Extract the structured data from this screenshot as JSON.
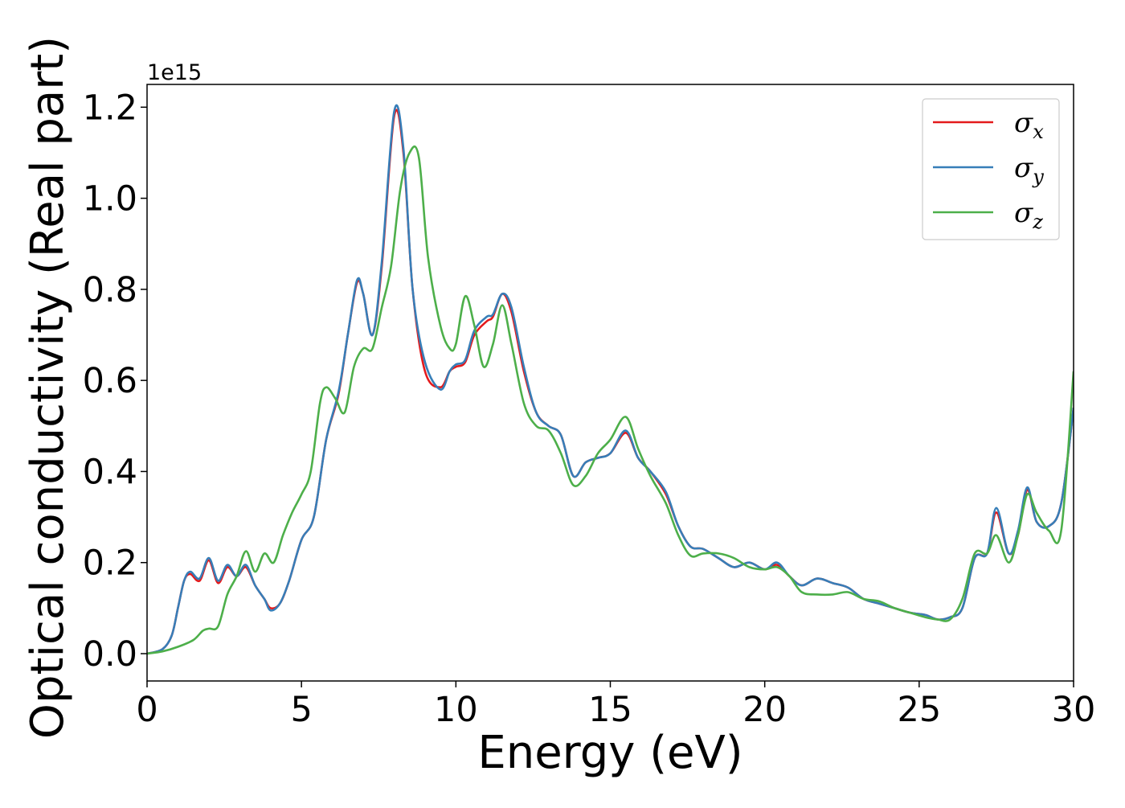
{
  "chart_data": {
    "type": "line",
    "xlabel": "Energy (eV)",
    "ylabel": "Optical conductivity (Real part)",
    "y_offset_text": "1e15",
    "y_multiplier": 1000000000000000.0,
    "xlim": [
      0,
      30
    ],
    "ylim": [
      -0.06,
      1.25
    ],
    "x_ticks": [
      0,
      5,
      10,
      15,
      20,
      25,
      30
    ],
    "x_tick_labels": [
      "0",
      "5",
      "10",
      "15",
      "20",
      "25",
      "30"
    ],
    "y_ticks": [
      0.0,
      0.2,
      0.4,
      0.6,
      0.8,
      1.0,
      1.2
    ],
    "y_tick_labels": [
      "0.0",
      "0.2",
      "0.4",
      "0.6",
      "0.8",
      "1.0",
      "1.2"
    ],
    "grid": false,
    "legend_position": "top-right",
    "series": [
      {
        "name": "σx",
        "legend_base": "σ",
        "legend_sub": "x",
        "color": "#e41a1c",
        "x": [
          0,
          0.5,
          0.8,
          1.0,
          1.2,
          1.4,
          1.7,
          2.0,
          2.3,
          2.6,
          2.9,
          3.2,
          3.5,
          3.8,
          4.0,
          4.3,
          4.6,
          5.0,
          5.4,
          5.8,
          6.2,
          6.5,
          6.8,
          7.0,
          7.3,
          7.6,
          8.0,
          8.3,
          8.6,
          9.0,
          9.5,
          9.8,
          10.0,
          10.3,
          10.6,
          11.0,
          11.2,
          11.5,
          11.8,
          12.2,
          12.6,
          13.0,
          13.4,
          13.8,
          14.2,
          14.6,
          15.0,
          15.5,
          15.9,
          16.3,
          16.8,
          17.2,
          17.6,
          18.0,
          18.5,
          19.0,
          19.5,
          20.0,
          20.4,
          20.8,
          21.2,
          21.7,
          22.2,
          22.7,
          23.2,
          23.7,
          24.2,
          24.7,
          25.2,
          25.6,
          26.0,
          26.4,
          26.8,
          27.2,
          27.5,
          27.9,
          28.2,
          28.5,
          28.8,
          29.2,
          29.6,
          30.0
        ],
        "y": [
          0,
          0.01,
          0.04,
          0.1,
          0.16,
          0.175,
          0.16,
          0.205,
          0.155,
          0.19,
          0.17,
          0.19,
          0.15,
          0.12,
          0.1,
          0.11,
          0.16,
          0.25,
          0.3,
          0.47,
          0.57,
          0.7,
          0.815,
          0.79,
          0.7,
          0.85,
          1.18,
          1.1,
          0.8,
          0.62,
          0.585,
          0.62,
          0.63,
          0.64,
          0.7,
          0.73,
          0.74,
          0.79,
          0.75,
          0.62,
          0.53,
          0.5,
          0.48,
          0.39,
          0.42,
          0.43,
          0.44,
          0.485,
          0.43,
          0.4,
          0.35,
          0.28,
          0.235,
          0.23,
          0.21,
          0.19,
          0.2,
          0.185,
          0.195,
          0.17,
          0.15,
          0.165,
          0.155,
          0.145,
          0.12,
          0.11,
          0.1,
          0.09,
          0.085,
          0.075,
          0.08,
          0.1,
          0.21,
          0.22,
          0.31,
          0.22,
          0.26,
          0.36,
          0.29,
          0.28,
          0.33,
          0.54
        ]
      },
      {
        "name": "σy",
        "legend_base": "σ",
        "legend_sub": "y",
        "color": "#377eb8",
        "x": [
          0,
          0.5,
          0.8,
          1.0,
          1.2,
          1.4,
          1.7,
          2.0,
          2.3,
          2.6,
          2.9,
          3.2,
          3.5,
          3.8,
          4.0,
          4.3,
          4.6,
          5.0,
          5.4,
          5.8,
          6.2,
          6.5,
          6.8,
          7.0,
          7.3,
          7.6,
          8.0,
          8.3,
          8.6,
          9.0,
          9.5,
          9.8,
          10.0,
          10.3,
          10.6,
          11.0,
          11.2,
          11.5,
          11.8,
          12.2,
          12.6,
          13.0,
          13.4,
          13.8,
          14.2,
          14.6,
          15.0,
          15.5,
          15.9,
          16.3,
          16.8,
          17.2,
          17.6,
          18.0,
          18.5,
          19.0,
          19.5,
          20.0,
          20.4,
          20.8,
          21.2,
          21.7,
          22.2,
          22.7,
          23.2,
          23.7,
          24.2,
          24.7,
          25.2,
          25.6,
          26.0,
          26.4,
          26.8,
          27.2,
          27.5,
          27.9,
          28.2,
          28.5,
          28.8,
          29.2,
          29.6,
          30.0
        ],
        "y": [
          0,
          0.01,
          0.04,
          0.1,
          0.16,
          0.18,
          0.165,
          0.21,
          0.16,
          0.195,
          0.17,
          0.195,
          0.15,
          0.12,
          0.095,
          0.11,
          0.16,
          0.25,
          0.3,
          0.47,
          0.575,
          0.7,
          0.82,
          0.79,
          0.7,
          0.86,
          1.19,
          1.11,
          0.8,
          0.64,
          0.58,
          0.62,
          0.635,
          0.645,
          0.71,
          0.74,
          0.745,
          0.79,
          0.76,
          0.63,
          0.53,
          0.5,
          0.48,
          0.39,
          0.42,
          0.43,
          0.44,
          0.49,
          0.43,
          0.4,
          0.355,
          0.28,
          0.235,
          0.23,
          0.21,
          0.19,
          0.2,
          0.185,
          0.2,
          0.17,
          0.15,
          0.165,
          0.155,
          0.145,
          0.12,
          0.11,
          0.1,
          0.09,
          0.085,
          0.075,
          0.08,
          0.1,
          0.21,
          0.22,
          0.32,
          0.22,
          0.27,
          0.365,
          0.29,
          0.28,
          0.33,
          0.54
        ]
      },
      {
        "name": "σz",
        "legend_base": "σ",
        "legend_sub": "z",
        "color": "#4daf4a",
        "x": [
          0,
          0.5,
          1.0,
          1.5,
          1.8,
          2.0,
          2.3,
          2.6,
          2.9,
          3.2,
          3.5,
          3.8,
          4.1,
          4.4,
          4.7,
          5.0,
          5.3,
          5.6,
          5.8,
          6.1,
          6.4,
          6.7,
          7.0,
          7.3,
          7.6,
          7.9,
          8.2,
          8.5,
          8.8,
          9.1,
          9.5,
          9.8,
          10.0,
          10.3,
          10.6,
          10.9,
          11.2,
          11.5,
          11.8,
          12.2,
          12.6,
          13.0,
          13.4,
          13.8,
          14.2,
          14.6,
          15.0,
          15.5,
          15.9,
          16.3,
          16.8,
          17.2,
          17.6,
          18.0,
          18.5,
          19.0,
          19.5,
          20.0,
          20.4,
          20.8,
          21.2,
          21.7,
          22.2,
          22.7,
          23.2,
          23.7,
          24.2,
          24.7,
          25.2,
          25.6,
          26.0,
          26.4,
          26.8,
          27.2,
          27.5,
          27.9,
          28.2,
          28.5,
          28.8,
          29.2,
          29.6,
          30.0
        ],
        "y": [
          0,
          0.005,
          0.015,
          0.03,
          0.05,
          0.055,
          0.06,
          0.13,
          0.17,
          0.225,
          0.18,
          0.22,
          0.2,
          0.26,
          0.31,
          0.35,
          0.4,
          0.55,
          0.585,
          0.56,
          0.53,
          0.63,
          0.67,
          0.67,
          0.76,
          0.85,
          1.02,
          1.1,
          1.09,
          0.87,
          0.72,
          0.67,
          0.68,
          0.785,
          0.72,
          0.63,
          0.68,
          0.765,
          0.68,
          0.55,
          0.5,
          0.49,
          0.44,
          0.37,
          0.39,
          0.44,
          0.47,
          0.52,
          0.45,
          0.39,
          0.33,
          0.26,
          0.215,
          0.22,
          0.22,
          0.21,
          0.19,
          0.185,
          0.19,
          0.17,
          0.135,
          0.13,
          0.13,
          0.135,
          0.12,
          0.115,
          0.1,
          0.09,
          0.08,
          0.075,
          0.075,
          0.12,
          0.22,
          0.22,
          0.26,
          0.2,
          0.26,
          0.35,
          0.31,
          0.27,
          0.27,
          0.62
        ]
      }
    ]
  }
}
